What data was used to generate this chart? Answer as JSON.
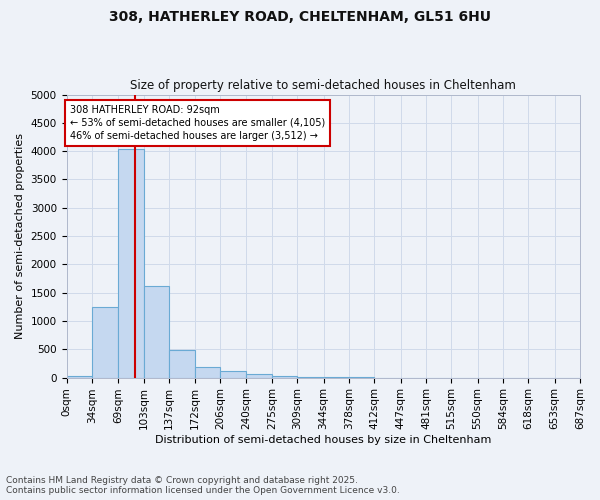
{
  "title1": "308, HATHERLEY ROAD, CHELTENHAM, GL51 6HU",
  "title2": "Size of property relative to semi-detached houses in Cheltenham",
  "xlabel": "Distribution of semi-detached houses by size in Cheltenham",
  "ylabel": "Number of semi-detached properties",
  "bar_color": "#c5d8f0",
  "bar_edge_color": "#6aaad4",
  "grid_color": "#d0daea",
  "vline_color": "#cc0000",
  "vline_x": 92,
  "annotation_text": "308 HATHERLEY ROAD: 92sqm\n← 53% of semi-detached houses are smaller (4,105)\n46% of semi-detached houses are larger (3,512) →",
  "annotation_box_color": "#ffffff",
  "annotation_box_edge": "#cc0000",
  "bins": [
    0,
    34,
    69,
    103,
    137,
    172,
    206,
    240,
    275,
    309,
    344,
    378,
    412,
    447,
    481,
    515,
    550,
    584,
    618,
    653,
    687
  ],
  "bin_labels": [
    "0sqm",
    "34sqm",
    "69sqm",
    "103sqm",
    "137sqm",
    "172sqm",
    "206sqm",
    "240sqm",
    "275sqm",
    "309sqm",
    "344sqm",
    "378sqm",
    "412sqm",
    "447sqm",
    "481sqm",
    "515sqm",
    "550sqm",
    "584sqm",
    "618sqm",
    "653sqm",
    "687sqm"
  ],
  "bar_heights": [
    30,
    1240,
    4030,
    1620,
    480,
    195,
    110,
    65,
    30,
    10,
    5,
    2,
    1,
    0,
    0,
    0,
    0,
    0,
    0,
    0
  ],
  "ylim": [
    0,
    5000
  ],
  "yticks": [
    0,
    500,
    1000,
    1500,
    2000,
    2500,
    3000,
    3500,
    4000,
    4500,
    5000
  ],
  "background_color": "#eef2f8",
  "plot_bg_color": "#eef2f8",
  "footer": "Contains HM Land Registry data © Crown copyright and database right 2025.\nContains public sector information licensed under the Open Government Licence v3.0.",
  "title1_fontsize": 10,
  "title2_fontsize": 8.5,
  "footer_fontsize": 6.5,
  "axis_label_fontsize": 8,
  "tick_fontsize": 7.5
}
